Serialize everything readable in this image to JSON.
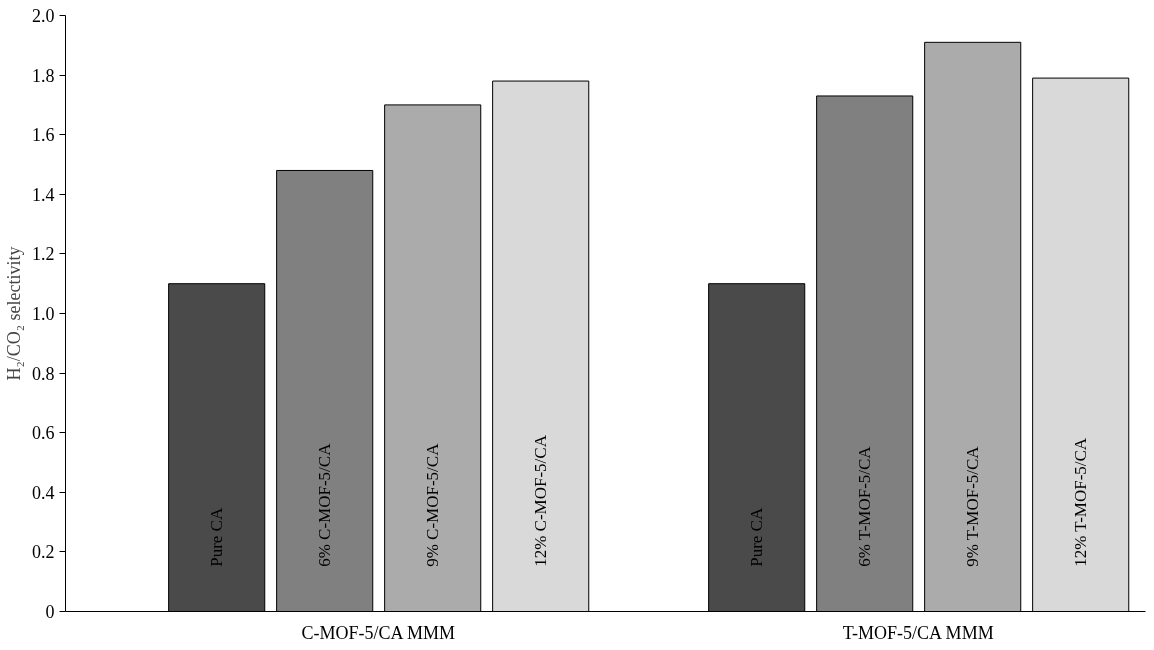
{
  "chart_data": {
    "type": "bar",
    "ylabel": "H₂/CO₂ selectivity",
    "categories": [
      "C-MOF-5/CA MMM",
      "T-MOF-5/CA MMM"
    ],
    "series": [
      {
        "color": "#4a4a4a",
        "values": [
          1.1,
          1.1
        ]
      },
      {
        "color": "#808080",
        "values": [
          1.48,
          1.73
        ]
      },
      {
        "color": "#ababab",
        "values": [
          1.7,
          1.91
        ]
      },
      {
        "color": "#d9d9d9",
        "values": [
          1.78,
          1.79
        ]
      }
    ],
    "annotations": [
      "Pure CA",
      "6% C-MOF-5/CA",
      "9% C-MOF-5/CA",
      "12% C-MOF-5/CA",
      "Pure CA",
      "6% T-MOF-5/CA",
      "9% T-MOF-5/CA",
      "12% T-MOF-5/CA"
    ],
    "ylim": [
      0,
      2.0
    ],
    "yticks": [
      {
        "value": 0,
        "label": "0"
      },
      0.2,
      0.4,
      0.6,
      0.8,
      {
        "value": 1.0,
        "label": "1.0"
      },
      1.2,
      1.4,
      1.6,
      1.8,
      {
        "value": 2.0,
        "label": "2.0"
      }
    ],
    "grid": false
  }
}
